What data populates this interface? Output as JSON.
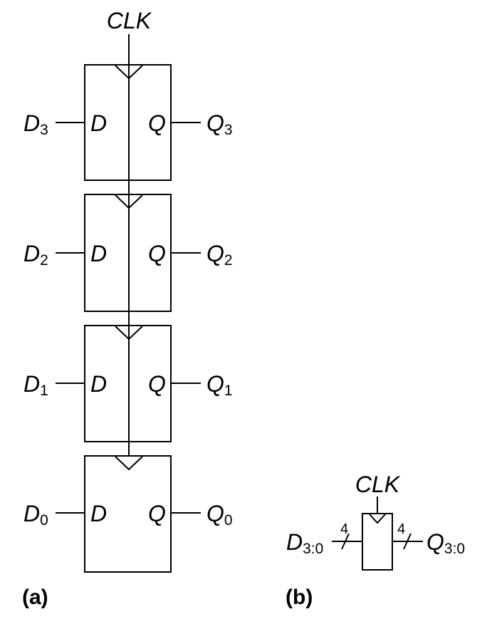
{
  "diagram_a": {
    "clock_label": "CLK",
    "caption": "(a)",
    "pin_d": "D",
    "pin_q": "Q",
    "flops": [
      {
        "d_base": "D",
        "d_sub": "3",
        "q_base": "Q",
        "q_sub": "3"
      },
      {
        "d_base": "D",
        "d_sub": "2",
        "q_base": "Q",
        "q_sub": "2"
      },
      {
        "d_base": "D",
        "d_sub": "1",
        "q_base": "Q",
        "q_sub": "1"
      },
      {
        "d_base": "D",
        "d_sub": "0",
        "q_base": "Q",
        "q_sub": "0"
      }
    ]
  },
  "diagram_b": {
    "clock_label": "CLK",
    "caption": "(b)",
    "input_base": "D",
    "input_sub": "3:0",
    "output_base": "Q",
    "output_sub": "3:0",
    "input_width": "4",
    "output_width": "4"
  }
}
